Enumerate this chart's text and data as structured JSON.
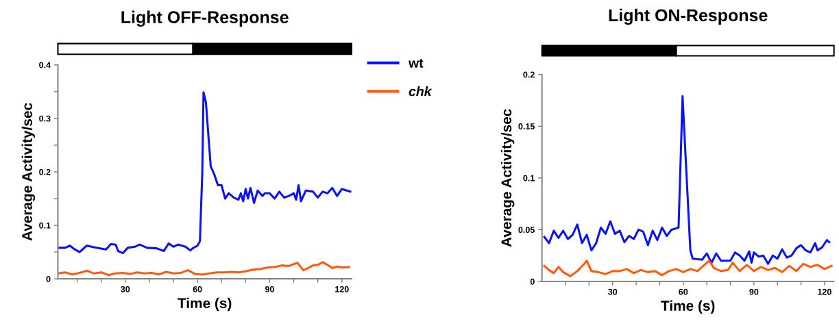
{
  "chart_data": [
    {
      "type": "line",
      "title": "Light OFF-Response",
      "xlabel": "Time (s)",
      "ylabel": "Average Activity/sec",
      "xlim": [
        2,
        124
      ],
      "ylim": [
        0,
        0.4
      ],
      "xticks": [
        {
          "value": 10,
          "label": null
        },
        {
          "value": 20,
          "label": null
        },
        30,
        {
          "value": 40,
          "label": null
        },
        {
          "value": 50,
          "label": null
        },
        60,
        {
          "value": 70,
          "label": null
        },
        {
          "value": 80,
          "label": null
        },
        90,
        {
          "value": 100,
          "label": null
        },
        {
          "value": 110,
          "label": null
        },
        120
      ],
      "yticks": [
        0,
        {
          "value": 0.05,
          "label": null
        },
        0.1,
        {
          "value": 0.15,
          "label": null
        },
        0.2,
        {
          "value": 0.25,
          "label": null
        },
        0.3,
        {
          "value": 0.35,
          "label": null
        },
        0.4
      ],
      "grid": false,
      "legend": "right",
      "line_style": "solid",
      "series": [
        {
          "name": "wt",
          "color": "#0a14f0",
          "x": [
            2,
            5,
            7,
            9,
            11,
            14,
            18,
            22,
            24,
            26,
            27,
            29,
            31,
            34,
            36,
            39,
            43,
            46,
            48,
            50,
            52,
            55,
            57,
            58,
            60,
            61,
            62,
            62.5,
            63.5,
            64.5,
            65.5,
            67,
            68.5,
            70,
            71.5,
            73,
            75,
            77,
            78,
            79,
            80,
            81,
            82,
            83.5,
            85,
            87,
            88,
            90,
            92,
            94,
            96,
            98,
            100,
            101,
            102,
            103,
            105,
            108,
            110,
            112,
            114,
            116,
            118,
            120,
            122,
            123.5
          ],
          "values": [
            0.058,
            0.058,
            0.062,
            0.055,
            0.05,
            0.062,
            0.058,
            0.055,
            0.065,
            0.064,
            0.052,
            0.048,
            0.058,
            0.06,
            0.064,
            0.058,
            0.057,
            0.052,
            0.066,
            0.06,
            0.064,
            0.06,
            0.053,
            0.057,
            0.062,
            0.07,
            0.2,
            0.349,
            0.33,
            0.27,
            0.21,
            0.195,
            0.175,
            0.175,
            0.15,
            0.16,
            0.152,
            0.148,
            0.16,
            0.145,
            0.168,
            0.15,
            0.17,
            0.142,
            0.165,
            0.155,
            0.16,
            0.16,
            0.15,
            0.163,
            0.152,
            0.155,
            0.16,
            0.148,
            0.175,
            0.145,
            0.165,
            0.163,
            0.152,
            0.163,
            0.16,
            0.17,
            0.155,
            0.168,
            0.165,
            0.163
          ]
        },
        {
          "name": "chk",
          "color": "#ff5a0a",
          "x": [
            2,
            5,
            8,
            11,
            14,
            17,
            20,
            23,
            26,
            29,
            32,
            35,
            38,
            41,
            44,
            47,
            50,
            53,
            56,
            59,
            62,
            65,
            68,
            71,
            74,
            77,
            80,
            83,
            86,
            89,
            92,
            95,
            98,
            101.5,
            104,
            106,
            108,
            110,
            112,
            114,
            116,
            118,
            120,
            123
          ],
          "values": [
            0.01,
            0.012,
            0.008,
            0.011,
            0.015,
            0.01,
            0.012,
            0.007,
            0.01,
            0.011,
            0.009,
            0.012,
            0.01,
            0.011,
            0.008,
            0.013,
            0.01,
            0.011,
            0.016,
            0.009,
            0.008,
            0.01,
            0.012,
            0.012,
            0.013,
            0.012,
            0.014,
            0.017,
            0.018,
            0.021,
            0.022,
            0.025,
            0.024,
            0.03,
            0.016,
            0.02,
            0.025,
            0.026,
            0.031,
            0.026,
            0.02,
            0.023,
            0.021,
            0.022
          ]
        }
      ]
    },
    {
      "type": "line",
      "title": "Light ON-Response",
      "xlabel": "Time (s)",
      "ylabel": "Average Activity/sec",
      "xlim": [
        0,
        124
      ],
      "ylim": [
        0,
        0.2
      ],
      "xticks": [
        {
          "value": 10,
          "label": null
        },
        {
          "value": 20,
          "label": null
        },
        30,
        {
          "value": 40,
          "label": null
        },
        {
          "value": 50,
          "label": null
        },
        60,
        {
          "value": 70,
          "label": null
        },
        {
          "value": 80,
          "label": null
        },
        90,
        {
          "value": 100,
          "label": null
        },
        {
          "value": 110,
          "label": null
        },
        120
      ],
      "yticks": [
        0,
        0.05,
        0.1,
        0.15,
        0.2
      ],
      "grid": false,
      "line_style": "solid",
      "series": [
        {
          "color": "#0a14f0",
          "x": [
            1,
            3,
            5,
            7,
            9,
            11,
            13,
            15,
            17,
            19,
            21,
            23,
            25,
            27,
            29,
            31,
            33,
            35,
            37,
            39,
            41,
            43,
            45,
            47,
            49,
            51,
            53,
            55,
            58,
            59.7,
            61,
            63,
            64,
            68,
            70,
            72,
            74,
            76,
            80,
            82,
            84,
            86,
            88,
            89,
            90,
            92,
            94,
            96,
            98,
            100,
            102,
            104,
            106,
            108,
            110,
            112,
            114,
            116,
            117,
            119,
            121,
            122
          ],
          "values": [
            0.043,
            0.037,
            0.049,
            0.042,
            0.049,
            0.041,
            0.045,
            0.055,
            0.037,
            0.045,
            0.03,
            0.037,
            0.052,
            0.046,
            0.058,
            0.046,
            0.049,
            0.038,
            0.044,
            0.041,
            0.05,
            0.048,
            0.035,
            0.049,
            0.04,
            0.052,
            0.044,
            0.05,
            0.052,
            0.179,
            0.12,
            0.03,
            0.022,
            0.021,
            0.027,
            0.018,
            0.027,
            0.02,
            0.02,
            0.028,
            0.025,
            0.02,
            0.029,
            0.018,
            0.028,
            0.024,
            0.025,
            0.017,
            0.025,
            0.022,
            0.031,
            0.023,
            0.025,
            0.032,
            0.035,
            0.03,
            0.028,
            0.037,
            0.03,
            0.033,
            0.04,
            0.038
          ]
        },
        {
          "color": "#ff5a0a",
          "x": [
            1,
            3,
            5,
            7,
            9,
            12,
            15,
            18,
            19,
            21,
            24,
            27,
            30,
            33,
            36,
            39,
            42,
            45,
            48,
            51,
            54,
            57,
            60,
            63,
            66,
            69,
            71,
            73,
            76,
            79,
            81,
            84,
            87,
            90,
            93,
            96,
            99,
            102,
            105,
            108,
            111,
            114,
            117,
            120,
            123
          ],
          "values": [
            0.015,
            0.011,
            0.008,
            0.014,
            0.009,
            0.005,
            0.01,
            0.017,
            0.02,
            0.01,
            0.009,
            0.007,
            0.01,
            0.01,
            0.012,
            0.008,
            0.011,
            0.009,
            0.01,
            0.006,
            0.01,
            0.012,
            0.009,
            0.012,
            0.01,
            0.016,
            0.02,
            0.013,
            0.01,
            0.011,
            0.018,
            0.01,
            0.016,
            0.01,
            0.014,
            0.011,
            0.013,
            0.009,
            0.015,
            0.01,
            0.017,
            0.014,
            0.016,
            0.012,
            0.015
          ]
        }
      ]
    }
  ]
}
